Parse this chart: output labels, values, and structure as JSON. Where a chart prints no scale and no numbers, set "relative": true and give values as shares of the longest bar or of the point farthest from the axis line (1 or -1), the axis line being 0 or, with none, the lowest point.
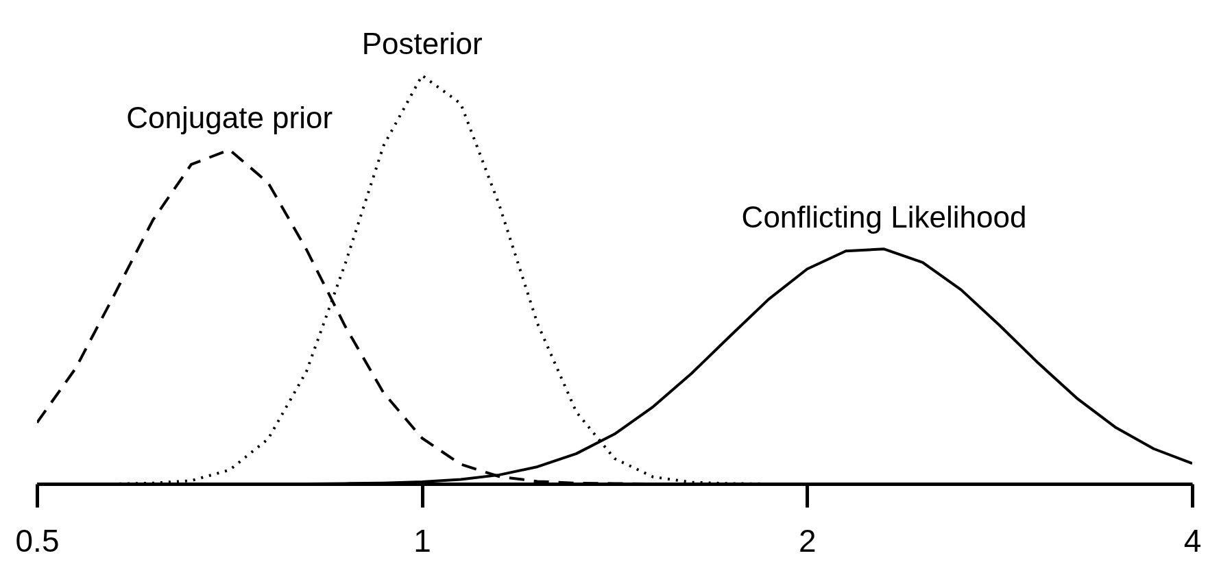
{
  "chart_data": {
    "type": "line",
    "relative": true,
    "log": "x",
    "xlim": [
      0.5,
      4
    ],
    "xticks": [
      0.5,
      1,
      2,
      4
    ],
    "grid": false,
    "legend": false,
    "tick_labels": "x",
    "marker": "none",
    "x": [
      0.5,
      0.536,
      0.574,
      0.616,
      0.66,
      0.707,
      0.758,
      0.812,
      0.871,
      0.933,
      1,
      1.072,
      1.149,
      1.231,
      1.32,
      1.414,
      1.516,
      1.625,
      1.741,
      1.866,
      2,
      2.144,
      2.297,
      2.462,
      2.639,
      2.828,
      3.031,
      3.249,
      3.482,
      3.732,
      4
    ],
    "series": [
      {
        "name": "Conjugate prior",
        "color": "#000000",
        "line_style": "dashed",
        "values": [
          0.15,
          0.283,
          0.46,
          0.646,
          0.782,
          0.818,
          0.737,
          0.574,
          0.385,
          0.223,
          0.112,
          0.048,
          0.018,
          0.006,
          0.002,
          0.001,
          0,
          0,
          0,
          0,
          0,
          0,
          0,
          0,
          0,
          0,
          0,
          0,
          0,
          0,
          0
        ]
      },
      {
        "name": "Posterior",
        "color": "#000000",
        "line_style": "dotted",
        "values": [
          0,
          0,
          0,
          0.002,
          0.008,
          0.034,
          0.11,
          0.275,
          0.54,
          0.828,
          1,
          0.931,
          0.683,
          0.392,
          0.176,
          0.062,
          0.017,
          0.004,
          0.001,
          0,
          0,
          0,
          0,
          0,
          0,
          0,
          0,
          0,
          0,
          0,
          0
        ]
      },
      {
        "name": "Conflicting Likelihood",
        "color": "#000000",
        "line_style": "solid",
        "values": [
          0,
          0,
          0,
          0,
          0,
          0,
          0,
          0,
          0.001,
          0.002,
          0.005,
          0.011,
          0.022,
          0.042,
          0.074,
          0.122,
          0.189,
          0.271,
          0.362,
          0.452,
          0.526,
          0.57,
          0.575,
          0.542,
          0.475,
          0.388,
          0.296,
          0.21,
          0.139,
          0.086,
          0.05
        ]
      }
    ]
  }
}
